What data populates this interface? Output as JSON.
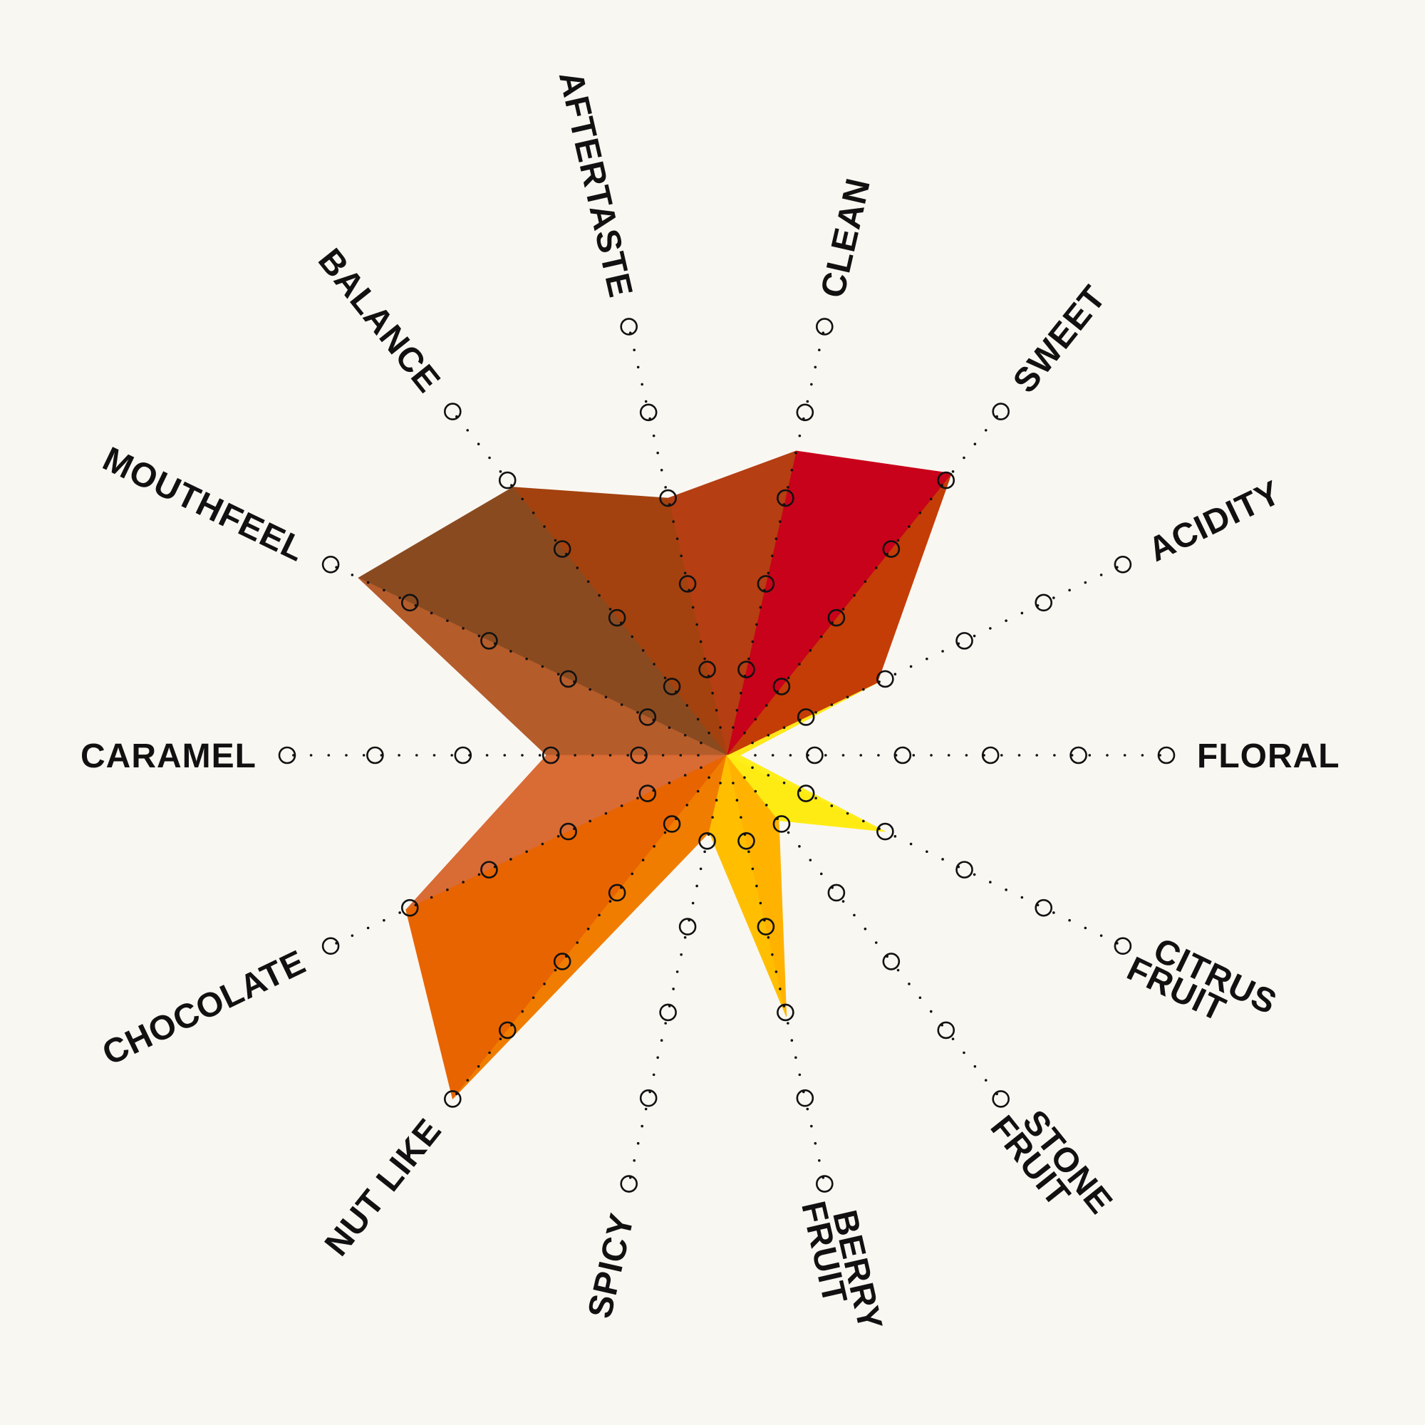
{
  "chart_data": {
    "type": "radar",
    "title": "",
    "range": [
      0,
      10
    ],
    "grid_levels": [
      2,
      4,
      6,
      8,
      10
    ],
    "axes": [
      {
        "label": [
          "FLORAL"
        ],
        "value": 0.3,
        "color": "#ffe81a"
      },
      {
        "label": [
          "ACIDITY"
        ],
        "value": 3.8,
        "color": "#c43d06"
      },
      {
        "label": [
          "SWEET"
        ],
        "value": 8.2,
        "color": "#c8021a"
      },
      {
        "label": [
          "CLEAN"
        ],
        "value": 7.1,
        "color": "#b53e12"
      },
      {
        "label": [
          "AFTERTASTE"
        ],
        "value": 6.0,
        "color": "#a3420f"
      },
      {
        "label": [
          "BALANCE"
        ],
        "value": 7.8,
        "color": "#8a4a20"
      },
      {
        "label": [
          "MOUTHFEEL"
        ],
        "value": 9.3,
        "color": "#b55c2b"
      },
      {
        "label": [
          "CARAMEL"
        ],
        "value": 4.1,
        "color": "#d96b35"
      },
      {
        "label": [
          "CHOCOLATE"
        ],
        "value": 8.1,
        "color": "#e86400"
      },
      {
        "label": [
          "NUT LIKE"
        ],
        "value": 10.0,
        "color": "#f07d00"
      },
      {
        "label": [
          "SPICY"
        ],
        "value": 1.8,
        "color": "#ffbf00"
      },
      {
        "label": [
          "BERRY",
          "FRUIT"
        ],
        "value": 6.1,
        "color": "#ffb300"
      },
      {
        "label": [
          "STONE",
          "FRUIT"
        ],
        "value": 1.9,
        "color": "#ffeb14"
      },
      {
        "label": [
          "CITRUS",
          "FRUIT"
        ],
        "value": 4.0,
        "color": "#ffee1a"
      }
    ]
  },
  "colors": {
    "background": "#f9f7f2",
    "grid": "#111111"
  }
}
